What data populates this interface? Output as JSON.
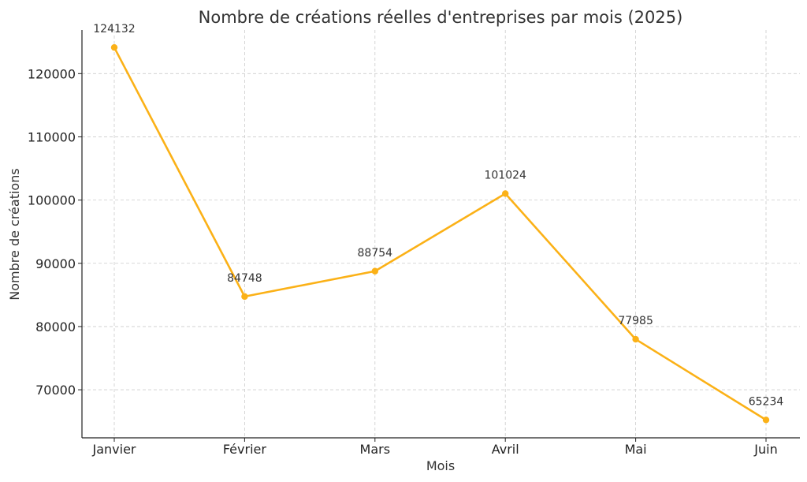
{
  "chart_data": {
    "type": "line",
    "title": "Nombre de créations réelles d'entreprises par mois (2025)",
    "xlabel": "Mois",
    "ylabel": "Nombre de créations",
    "categories": [
      "Janvier",
      "Février",
      "Mars",
      "Avril",
      "Mai",
      "Juin"
    ],
    "series": [
      {
        "values": [
          124132,
          84748,
          88754,
          101024,
          77985,
          65234
        ],
        "data_labels": [
          "124132",
          "84748",
          "88754",
          "101024",
          "77985",
          "65234"
        ],
        "color": "#FBB117"
      }
    ],
    "ylim": [
      62400,
      126900
    ],
    "yticks": [
      70000,
      80000,
      90000,
      100000,
      110000,
      120000
    ],
    "ytick_labels": [
      "70000",
      "80000",
      "90000",
      "100000",
      "110000",
      "120000"
    ],
    "grid": true,
    "legend": "none"
  }
}
